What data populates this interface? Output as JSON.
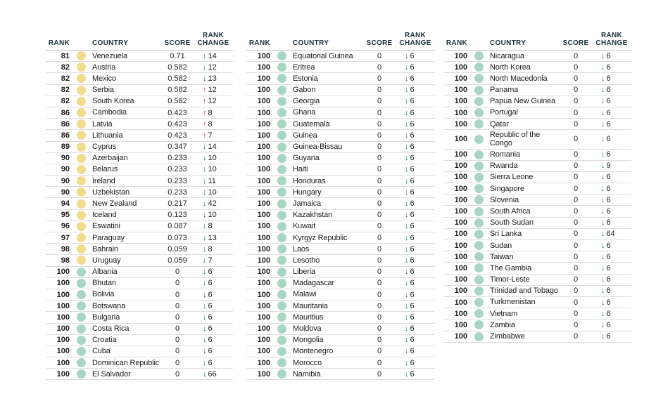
{
  "colors": {
    "down_arrow": "#0E7C80",
    "up_arrow": "#C8473F",
    "dot_yellow": "#F1DB8D",
    "dot_green": "#A9D6C3",
    "header_text": "#16323A",
    "body_text": "#1C1C1C",
    "row_divider": "#DCDCDC",
    "header_divider": "#C2C6C6"
  },
  "icons": {
    "down": "↓",
    "up": "↑"
  },
  "header": {
    "rank": "RANK",
    "country": "COUNTRY",
    "score": "SCORE",
    "rank_change_line1": "RANK",
    "rank_change_line2": "CHANGE"
  },
  "chart_data": [
    {
      "type": "table",
      "columns": [
        "RANK",
        "COUNTRY",
        "SCORE",
        "RANK CHANGE"
      ],
      "rows": [
        {
          "rank": "81",
          "country": "Venezuela",
          "score": "0.71",
          "change": "14",
          "direction": "down",
          "dot": "yellow"
        },
        {
          "rank": "82",
          "country": "Austria",
          "score": "0.582",
          "change": "12",
          "direction": "down",
          "dot": "yellow"
        },
        {
          "rank": "82",
          "country": "Mexico",
          "score": "0.582",
          "change": "13",
          "direction": "down",
          "dot": "yellow"
        },
        {
          "rank": "82",
          "country": "Serbia",
          "score": "0.582",
          "change": "12",
          "direction": "up",
          "dot": "yellow"
        },
        {
          "rank": "82",
          "country": "South Korea",
          "score": "0.582",
          "change": "12",
          "direction": "up",
          "dot": "yellow"
        },
        {
          "rank": "86",
          "country": "Cambodia",
          "score": "0.423",
          "change": "8",
          "direction": "up",
          "dot": "yellow"
        },
        {
          "rank": "86",
          "country": "Latvia",
          "score": "0.423",
          "change": "8",
          "direction": "up",
          "dot": "yellow"
        },
        {
          "rank": "86",
          "country": "Lithuania",
          "score": "0.423",
          "change": "7",
          "direction": "up",
          "dot": "yellow"
        },
        {
          "rank": "89",
          "country": "Cyprus",
          "score": "0.347",
          "change": "14",
          "direction": "down",
          "dot": "yellow"
        },
        {
          "rank": "90",
          "country": "Azerbaijan",
          "score": "0.233",
          "change": "10",
          "direction": "down",
          "dot": "yellow"
        },
        {
          "rank": "90",
          "country": "Belarus",
          "score": "0.233",
          "change": "10",
          "direction": "down",
          "dot": "yellow"
        },
        {
          "rank": "90",
          "country": "Ireland",
          "score": "0.233",
          "change": "11",
          "direction": "down",
          "dot": "yellow"
        },
        {
          "rank": "90",
          "country": "Uzbekistan",
          "score": "0.233",
          "change": "10",
          "direction": "down",
          "dot": "yellow"
        },
        {
          "rank": "94",
          "country": "New Zealand",
          "score": "0.217",
          "change": "42",
          "direction": "down",
          "dot": "yellow"
        },
        {
          "rank": "95",
          "country": "Iceland",
          "score": "0.123",
          "change": "10",
          "direction": "down",
          "dot": "yellow"
        },
        {
          "rank": "96",
          "country": "Eswatini",
          "score": "0.087",
          "change": "8",
          "direction": "down",
          "dot": "yellow"
        },
        {
          "rank": "97",
          "country": "Paraguay",
          "score": "0.073",
          "change": "13",
          "direction": "down",
          "dot": "yellow"
        },
        {
          "rank": "98",
          "country": "Bahrain",
          "score": "0.059",
          "change": "8",
          "direction": "down",
          "dot": "yellow"
        },
        {
          "rank": "98",
          "country": "Uruguay",
          "score": "0.059",
          "change": "7",
          "direction": "down",
          "dot": "yellow"
        },
        {
          "rank": "100",
          "country": "Albania",
          "score": "0",
          "change": "6",
          "direction": "down",
          "dot": "green"
        },
        {
          "rank": "100",
          "country": "Bhutan",
          "score": "0",
          "change": "6",
          "direction": "down",
          "dot": "green"
        },
        {
          "rank": "100",
          "country": "Bolivia",
          "score": "0",
          "change": "6",
          "direction": "down",
          "dot": "green"
        },
        {
          "rank": "100",
          "country": "Botswana",
          "score": "0",
          "change": "6",
          "direction": "down",
          "dot": "green"
        },
        {
          "rank": "100",
          "country": "Bulgaria",
          "score": "0",
          "change": "6",
          "direction": "down",
          "dot": "green"
        },
        {
          "rank": "100",
          "country": "Costa Rica",
          "score": "0",
          "change": "6",
          "direction": "down",
          "dot": "green"
        },
        {
          "rank": "100",
          "country": "Croatia",
          "score": "0",
          "change": "6",
          "direction": "down",
          "dot": "green"
        },
        {
          "rank": "100",
          "country": "Cuba",
          "score": "0",
          "change": "6",
          "direction": "down",
          "dot": "green"
        },
        {
          "rank": "100",
          "country": "Dominican Republic",
          "score": "0",
          "change": "6",
          "direction": "down",
          "dot": "green"
        },
        {
          "rank": "100",
          "country": "El Salvador",
          "score": "0",
          "change": "66",
          "direction": "down",
          "dot": "green"
        }
      ]
    },
    {
      "type": "table",
      "columns": [
        "RANK",
        "COUNTRY",
        "SCORE",
        "RANK CHANGE"
      ],
      "rows": [
        {
          "rank": "100",
          "country": "Equatorial Guinea",
          "score": "0",
          "change": "6",
          "direction": "down",
          "dot": "green"
        },
        {
          "rank": "100",
          "country": "Eritrea",
          "score": "0",
          "change": "6",
          "direction": "down",
          "dot": "green"
        },
        {
          "rank": "100",
          "country": "Estonia",
          "score": "0",
          "change": "6",
          "direction": "down",
          "dot": "green"
        },
        {
          "rank": "100",
          "country": "Gabon",
          "score": "0",
          "change": "6",
          "direction": "down",
          "dot": "green"
        },
        {
          "rank": "100",
          "country": "Georgia",
          "score": "0",
          "change": "6",
          "direction": "down",
          "dot": "green"
        },
        {
          "rank": "100",
          "country": "Ghana",
          "score": "0",
          "change": "6",
          "direction": "down",
          "dot": "green"
        },
        {
          "rank": "100",
          "country": "Guatemala",
          "score": "0",
          "change": "6",
          "direction": "down",
          "dot": "green"
        },
        {
          "rank": "100",
          "country": "Guinea",
          "score": "0",
          "change": "6",
          "direction": "down",
          "dot": "green"
        },
        {
          "rank": "100",
          "country": "Guinea-Bissau",
          "score": "0",
          "change": "6",
          "direction": "down",
          "dot": "green"
        },
        {
          "rank": "100",
          "country": "Guyana",
          "score": "0",
          "change": "6",
          "direction": "down",
          "dot": "green"
        },
        {
          "rank": "100",
          "country": "Haiti",
          "score": "0",
          "change": "6",
          "direction": "down",
          "dot": "green"
        },
        {
          "rank": "100",
          "country": "Honduras",
          "score": "0",
          "change": "6",
          "direction": "down",
          "dot": "green"
        },
        {
          "rank": "100",
          "country": "Hungary",
          "score": "0",
          "change": "6",
          "direction": "down",
          "dot": "green"
        },
        {
          "rank": "100",
          "country": "Jamaica",
          "score": "0",
          "change": "6",
          "direction": "down",
          "dot": "green"
        },
        {
          "rank": "100",
          "country": "Kazakhstan",
          "score": "0",
          "change": "6",
          "direction": "down",
          "dot": "green"
        },
        {
          "rank": "100",
          "country": "Kuwait",
          "score": "0",
          "change": "6",
          "direction": "down",
          "dot": "green"
        },
        {
          "rank": "100",
          "country": "Kyrgyz Republic",
          "score": "0",
          "change": "6",
          "direction": "down",
          "dot": "green"
        },
        {
          "rank": "100",
          "country": "Laos",
          "score": "0",
          "change": "6",
          "direction": "down",
          "dot": "green"
        },
        {
          "rank": "100",
          "country": "Lesotho",
          "score": "0",
          "change": "6",
          "direction": "down",
          "dot": "green"
        },
        {
          "rank": "100",
          "country": "Liberia",
          "score": "0",
          "change": "6",
          "direction": "down",
          "dot": "green"
        },
        {
          "rank": "100",
          "country": "Madagascar",
          "score": "0",
          "change": "6",
          "direction": "down",
          "dot": "green"
        },
        {
          "rank": "100",
          "country": "Malawi",
          "score": "0",
          "change": "6",
          "direction": "down",
          "dot": "green"
        },
        {
          "rank": "100",
          "country": "Mauritania",
          "score": "0",
          "change": "6",
          "direction": "down",
          "dot": "green"
        },
        {
          "rank": "100",
          "country": "Mauritius",
          "score": "0",
          "change": "6",
          "direction": "down",
          "dot": "green"
        },
        {
          "rank": "100",
          "country": "Moldova",
          "score": "0",
          "change": "6",
          "direction": "down",
          "dot": "green"
        },
        {
          "rank": "100",
          "country": "Mongolia",
          "score": "0",
          "change": "6",
          "direction": "down",
          "dot": "green"
        },
        {
          "rank": "100",
          "country": "Montenegro",
          "score": "0",
          "change": "6",
          "direction": "down",
          "dot": "green"
        },
        {
          "rank": "100",
          "country": "Morocco",
          "score": "0",
          "change": "6",
          "direction": "down",
          "dot": "green"
        },
        {
          "rank": "100",
          "country": "Namibia",
          "score": "0",
          "change": "6",
          "direction": "down",
          "dot": "green"
        }
      ]
    },
    {
      "type": "table",
      "columns": [
        "RANK",
        "COUNTRY",
        "SCORE",
        "RANK CHANGE"
      ],
      "rows": [
        {
          "rank": "100",
          "country": "Nicaragua",
          "score": "0",
          "change": "6",
          "direction": "down",
          "dot": "green"
        },
        {
          "rank": "100",
          "country": "North Korea",
          "score": "0",
          "change": "6",
          "direction": "down",
          "dot": "green"
        },
        {
          "rank": "100",
          "country": "North Macedonia",
          "score": "0",
          "change": "6",
          "direction": "down",
          "dot": "green"
        },
        {
          "rank": "100",
          "country": "Panama",
          "score": "0",
          "change": "6",
          "direction": "down",
          "dot": "green"
        },
        {
          "rank": "100",
          "country": "Papua New Guinea",
          "score": "0",
          "change": "6",
          "direction": "down",
          "dot": "green"
        },
        {
          "rank": "100",
          "country": "Portugal",
          "score": "0",
          "change": "6",
          "direction": "down",
          "dot": "green"
        },
        {
          "rank": "100",
          "country": "Qatar",
          "score": "0",
          "change": "6",
          "direction": "down",
          "dot": "green"
        },
        {
          "rank": "100",
          "country": "Republic of the Congo",
          "score": "0",
          "change": "6",
          "direction": "down",
          "dot": "green"
        },
        {
          "rank": "100",
          "country": "Romania",
          "score": "0",
          "change": "6",
          "direction": "down",
          "dot": "green"
        },
        {
          "rank": "100",
          "country": "Rwanda",
          "score": "0",
          "change": "9",
          "direction": "down",
          "dot": "green"
        },
        {
          "rank": "100",
          "country": "Sierra Leone",
          "score": "0",
          "change": "6",
          "direction": "down",
          "dot": "green"
        },
        {
          "rank": "100",
          "country": "Singapore",
          "score": "0",
          "change": "6",
          "direction": "down",
          "dot": "green"
        },
        {
          "rank": "100",
          "country": "Slovenia",
          "score": "0",
          "change": "6",
          "direction": "down",
          "dot": "green"
        },
        {
          "rank": "100",
          "country": "South Africa",
          "score": "0",
          "change": "6",
          "direction": "down",
          "dot": "green"
        },
        {
          "rank": "100",
          "country": "South Sudan",
          "score": "0",
          "change": "6",
          "direction": "down",
          "dot": "green"
        },
        {
          "rank": "100",
          "country": "Sri Lanka",
          "score": "0",
          "change": "64",
          "direction": "down",
          "dot": "green"
        },
        {
          "rank": "100",
          "country": "Sudan",
          "score": "0",
          "change": "6",
          "direction": "down",
          "dot": "green"
        },
        {
          "rank": "100",
          "country": "Taiwan",
          "score": "0",
          "change": "6",
          "direction": "down",
          "dot": "green"
        },
        {
          "rank": "100",
          "country": "The Gambia",
          "score": "0",
          "change": "6",
          "direction": "down",
          "dot": "green"
        },
        {
          "rank": "100",
          "country": "Timor-Leste",
          "score": "0",
          "change": "6",
          "direction": "down",
          "dot": "green"
        },
        {
          "rank": "100",
          "country": "Trinidad and Tobago",
          "score": "0",
          "change": "6",
          "direction": "down",
          "dot": "green"
        },
        {
          "rank": "100",
          "country": "Turkmenistan",
          "score": "0",
          "change": "6",
          "direction": "down",
          "dot": "green"
        },
        {
          "rank": "100",
          "country": "Vietnam",
          "score": "0",
          "change": "6",
          "direction": "down",
          "dot": "green"
        },
        {
          "rank": "100",
          "country": "Zambia",
          "score": "0",
          "change": "6",
          "direction": "down",
          "dot": "green"
        },
        {
          "rank": "100",
          "country": "Zimbabwe",
          "score": "0",
          "change": "6",
          "direction": "down",
          "dot": "green"
        }
      ]
    }
  ]
}
